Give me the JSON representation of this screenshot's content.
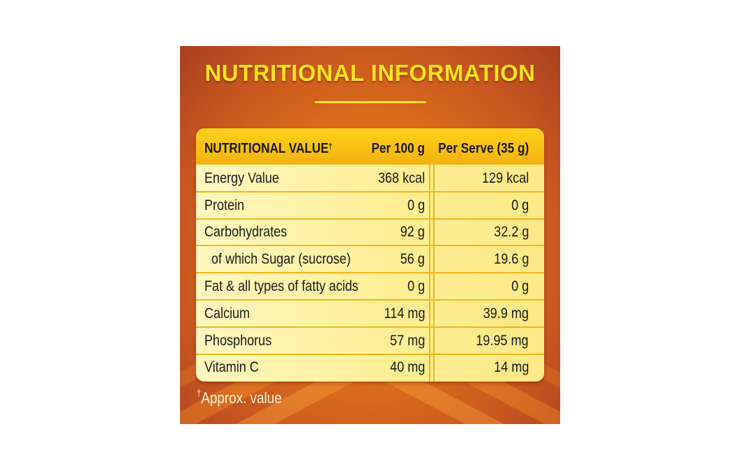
{
  "title": "NUTRITIONAL INFORMATION",
  "table": {
    "headers": {
      "nutrient": "NUTRITIONAL VALUE",
      "nutrient_mark": "†",
      "per_100g": "Per 100 g",
      "per_serve": "Per Serve (35 g)"
    },
    "rows": [
      {
        "name": "Energy Value",
        "per_100g": "368 kcal",
        "per_serve": "129 kcal"
      },
      {
        "name": "Protein",
        "per_100g": "0 g",
        "per_serve": "0 g"
      },
      {
        "name": "Carbohydrates",
        "per_100g": "92 g",
        "per_serve": "32.2 g"
      },
      {
        "name": "of which Sugar (sucrose)",
        "per_100g": "56 g",
        "per_serve": "19.6 g"
      },
      {
        "name": "Fat & all types of fatty acids",
        "per_100g": "0 g",
        "per_serve": "0 g"
      },
      {
        "name": "Calcium",
        "per_100g": "114 mg",
        "per_serve": "39.9 mg"
      },
      {
        "name": "Phosphorus",
        "per_100g": "57 mg",
        "per_serve": "19.95 mg"
      },
      {
        "name": "Vitamin C",
        "per_100g": "40 mg",
        "per_serve": "14 mg"
      }
    ]
  },
  "footnote": {
    "mark": "†",
    "text": "Approx. value"
  },
  "colors": {
    "title": "#ffe21f",
    "panel_orange": "#e0701a",
    "header_yellow": "#ffd21b",
    "row_cream": "#fdf3a4"
  }
}
